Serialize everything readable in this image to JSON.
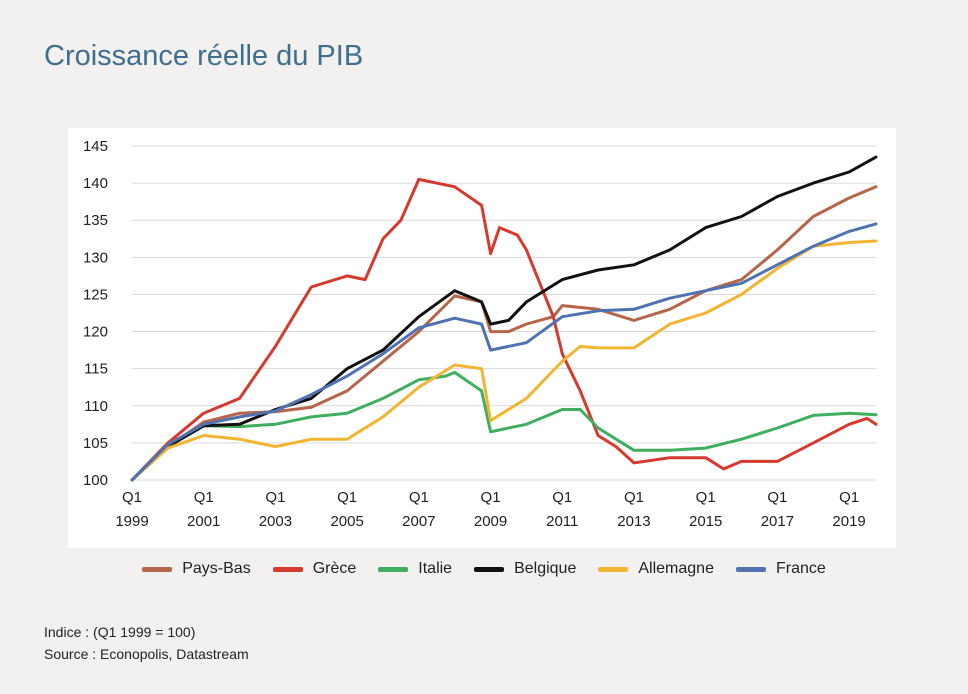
{
  "title": "Croissance réelle du PIB",
  "note": "Indice : (Q1 1999 = 100)",
  "source": "Source : Econopolis, Datastream",
  "chart_data": {
    "type": "line",
    "ylim": [
      100,
      145
    ],
    "yticks": [
      100,
      105,
      110,
      115,
      120,
      125,
      130,
      135,
      140,
      145
    ],
    "x_start": 1999.0,
    "x_end": 2019.75,
    "xticks": [
      {
        "x": 1999,
        "q": "Q1",
        "y": "1999"
      },
      {
        "x": 2001,
        "q": "Q1",
        "y": "2001"
      },
      {
        "x": 2003,
        "q": "Q1",
        "y": "2003"
      },
      {
        "x": 2005,
        "q": "Q1",
        "y": "2005"
      },
      {
        "x": 2007,
        "q": "Q1",
        "y": "2007"
      },
      {
        "x": 2009,
        "q": "Q1",
        "y": "2009"
      },
      {
        "x": 2011,
        "q": "Q1",
        "y": "2011"
      },
      {
        "x": 2013,
        "q": "Q1",
        "y": "2013"
      },
      {
        "x": 2015,
        "q": "Q1",
        "y": "2015"
      },
      {
        "x": 2017,
        "q": "Q1",
        "y": "2017"
      },
      {
        "x": 2019,
        "q": "Q1",
        "y": "2019"
      }
    ],
    "grid": "horizontal",
    "legend_position": "bottom",
    "series": [
      {
        "name": "Pays-Bas",
        "color": "#b5654a",
        "points": [
          [
            1999,
            100
          ],
          [
            2000,
            104.5
          ],
          [
            2001,
            107.8
          ],
          [
            2002,
            109
          ],
          [
            2003,
            109.2
          ],
          [
            2004,
            109.8
          ],
          [
            2005,
            112
          ],
          [
            2006,
            116
          ],
          [
            2007,
            120
          ],
          [
            2008,
            124.8
          ],
          [
            2008.75,
            124
          ],
          [
            2009,
            120
          ],
          [
            2009.5,
            120
          ],
          [
            2010,
            121
          ],
          [
            2010.75,
            122
          ],
          [
            2011,
            123.5
          ],
          [
            2012,
            123
          ],
          [
            2013,
            121.5
          ],
          [
            2014,
            123
          ],
          [
            2015,
            125.5
          ],
          [
            2016,
            127
          ],
          [
            2017,
            131
          ],
          [
            2018,
            135.5
          ],
          [
            2019,
            138
          ],
          [
            2019.75,
            139.5
          ]
        ]
      },
      {
        "name": "Grèce",
        "color": "#d63a2f",
        "points": [
          [
            1999,
            100
          ],
          [
            2000,
            105
          ],
          [
            2001,
            109
          ],
          [
            2002,
            111
          ],
          [
            2003,
            118
          ],
          [
            2003.5,
            122
          ],
          [
            2004,
            126
          ],
          [
            2005,
            127.5
          ],
          [
            2005.5,
            127
          ],
          [
            2006,
            132.5
          ],
          [
            2006.5,
            135
          ],
          [
            2007,
            140.5
          ],
          [
            2008,
            139.5
          ],
          [
            2008.75,
            137
          ],
          [
            2009,
            130.5
          ],
          [
            2009.25,
            134
          ],
          [
            2009.75,
            133
          ],
          [
            2010,
            131
          ],
          [
            2010.75,
            122
          ],
          [
            2011,
            117
          ],
          [
            2011.5,
            112
          ],
          [
            2012,
            106
          ],
          [
            2012.5,
            104.5
          ],
          [
            2013,
            102.3
          ],
          [
            2014,
            103
          ],
          [
            2015,
            103
          ],
          [
            2015.5,
            101.5
          ],
          [
            2016,
            102.5
          ],
          [
            2017,
            102.5
          ],
          [
            2018,
            105
          ],
          [
            2019,
            107.5
          ],
          [
            2019.5,
            108.3
          ],
          [
            2019.75,
            107.5
          ]
        ]
      },
      {
        "name": "Italie",
        "color": "#3fae5e",
        "points": [
          [
            1999,
            100
          ],
          [
            2000,
            104.5
          ],
          [
            2001,
            107.3
          ],
          [
            2002,
            107.2
          ],
          [
            2003,
            107.5
          ],
          [
            2004,
            108.5
          ],
          [
            2005,
            109
          ],
          [
            2006,
            111
          ],
          [
            2007,
            113.5
          ],
          [
            2007.75,
            114
          ],
          [
            2008,
            114.5
          ],
          [
            2008.75,
            112
          ],
          [
            2009,
            106.5
          ],
          [
            2010,
            107.5
          ],
          [
            2011,
            109.5
          ],
          [
            2011.5,
            109.5
          ],
          [
            2012,
            107
          ],
          [
            2013,
            104
          ],
          [
            2014,
            104
          ],
          [
            2015,
            104.3
          ],
          [
            2016,
            105.5
          ],
          [
            2017,
            107
          ],
          [
            2018,
            108.7
          ],
          [
            2019,
            109
          ],
          [
            2019.75,
            108.8
          ]
        ]
      },
      {
        "name": "Belgique",
        "color": "#111111",
        "points": [
          [
            1999,
            100
          ],
          [
            2000,
            104.5
          ],
          [
            2001,
            107.3
          ],
          [
            2002,
            107.5
          ],
          [
            2003,
            109.5
          ],
          [
            2004,
            111
          ],
          [
            2005,
            115
          ],
          [
            2006,
            117.5
          ],
          [
            2007,
            122
          ],
          [
            2008,
            125.5
          ],
          [
            2008.75,
            124
          ],
          [
            2009,
            121
          ],
          [
            2009.5,
            121.5
          ],
          [
            2010,
            124
          ],
          [
            2011,
            127
          ],
          [
            2012,
            128.3
          ],
          [
            2013,
            129
          ],
          [
            2014,
            131
          ],
          [
            2015,
            134
          ],
          [
            2016,
            135.5
          ],
          [
            2017,
            138.2
          ],
          [
            2018,
            140
          ],
          [
            2019,
            141.5
          ],
          [
            2019.75,
            143.5
          ]
        ]
      },
      {
        "name": "Allemagne",
        "color": "#f2b531",
        "points": [
          [
            1999,
            100
          ],
          [
            2000,
            104.3
          ],
          [
            2001,
            106
          ],
          [
            2002,
            105.5
          ],
          [
            2003,
            104.5
          ],
          [
            2004,
            105.5
          ],
          [
            2005,
            105.5
          ],
          [
            2006,
            108.5
          ],
          [
            2007,
            112.5
          ],
          [
            2008,
            115.5
          ],
          [
            2008.75,
            115
          ],
          [
            2009,
            108
          ],
          [
            2010,
            111
          ],
          [
            2011,
            116
          ],
          [
            2011.5,
            118
          ],
          [
            2012,
            117.8
          ],
          [
            2013,
            117.8
          ],
          [
            2014,
            121
          ],
          [
            2015,
            122.5
          ],
          [
            2016,
            125
          ],
          [
            2017,
            128.5
          ],
          [
            2018,
            131.5
          ],
          [
            2019,
            132
          ],
          [
            2019.75,
            132.2
          ]
        ]
      },
      {
        "name": "France",
        "color": "#4e73b0",
        "points": [
          [
            1999,
            100
          ],
          [
            2000,
            104.8
          ],
          [
            2001,
            107.5
          ],
          [
            2002,
            108.5
          ],
          [
            2003,
            109.3
          ],
          [
            2004,
            111.5
          ],
          [
            2005,
            114
          ],
          [
            2006,
            117
          ],
          [
            2007,
            120.5
          ],
          [
            2008,
            121.8
          ],
          [
            2008.75,
            121
          ],
          [
            2009,
            117.5
          ],
          [
            2010,
            118.5
          ],
          [
            2011,
            122
          ],
          [
            2012,
            122.8
          ],
          [
            2013,
            123
          ],
          [
            2014,
            124.5
          ],
          [
            2015,
            125.5
          ],
          [
            2016,
            126.5
          ],
          [
            2017,
            129
          ],
          [
            2018,
            131.5
          ],
          [
            2019,
            133.5
          ],
          [
            2019.75,
            134.5
          ]
        ]
      }
    ]
  }
}
